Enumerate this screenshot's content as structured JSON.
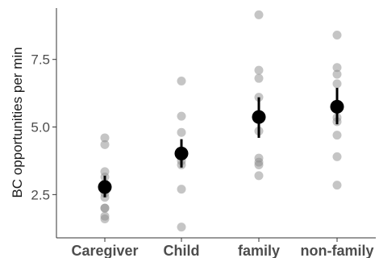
{
  "chart_data": {
    "type": "scatter",
    "title": "",
    "xlabel": "",
    "ylabel": "BC opportunities per min",
    "categories": [
      "Caregiver",
      "Child",
      "family",
      "non-family"
    ],
    "yticks": [
      "2.5",
      "5.0",
      "7.5"
    ],
    "ytick_values": [
      2.5,
      5.0,
      7.5
    ],
    "ylim": [
      0.9,
      9.4
    ],
    "grid": false,
    "legend": "none",
    "points": [
      [
        1.6,
        1.7,
        2.0,
        2.0,
        2.4,
        2.55,
        2.9,
        3.15,
        3.35,
        4.35,
        4.6
      ],
      [
        1.3,
        2.7,
        3.6,
        3.75,
        4.8,
        5.4,
        6.7
      ],
      [
        3.2,
        3.6,
        3.7,
        3.85,
        4.85,
        6.1,
        6.8,
        7.1,
        9.15
      ],
      [
        2.85,
        3.9,
        4.7,
        5.2,
        5.35,
        6.6,
        6.95,
        7.2,
        8.4
      ]
    ],
    "means": [
      2.78,
      4.02,
      5.37,
      5.75
    ],
    "error_low": [
      2.4,
      3.5,
      4.6,
      5.1
    ],
    "error_high": [
      3.2,
      4.55,
      6.1,
      6.45
    ],
    "colors": {
      "point": "#8c8c8c",
      "mean": "#000000",
      "axis": "#333333",
      "tick_text": "#4d4d4d"
    }
  }
}
